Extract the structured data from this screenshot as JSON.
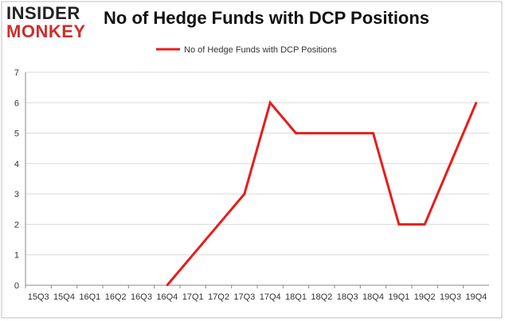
{
  "logo": {
    "line1": "INSIDER",
    "line2": "MONKEY"
  },
  "colors": {
    "series": "#e81c1c",
    "grid": "#d9d9d9",
    "axis": "#888888",
    "frame": "#bfbfbf",
    "logo_red": "#c9302c"
  },
  "chart_data": {
    "type": "line",
    "title": "No of Hedge Funds with DCP Positions",
    "xlabel": "",
    "ylabel": "",
    "ylim": [
      0,
      7
    ],
    "yticks": [
      "0",
      "1",
      "2",
      "3",
      "4",
      "5",
      "6",
      "7"
    ],
    "categories": [
      "15Q3",
      "15Q4",
      "16Q1",
      "16Q2",
      "16Q3",
      "16Q4",
      "17Q1",
      "17Q2",
      "17Q3",
      "17Q4",
      "18Q1",
      "18Q2",
      "18Q3",
      "18Q4",
      "19Q1",
      "19Q2",
      "19Q3",
      "19Q4"
    ],
    "series": [
      {
        "name": "No of Hedge Funds with DCP Positions",
        "values": [
          null,
          null,
          null,
          null,
          null,
          0,
          1,
          2,
          3,
          6,
          5,
          5,
          5,
          5,
          2,
          2,
          4,
          6
        ]
      }
    ],
    "legend": "top-center",
    "grid": true
  }
}
